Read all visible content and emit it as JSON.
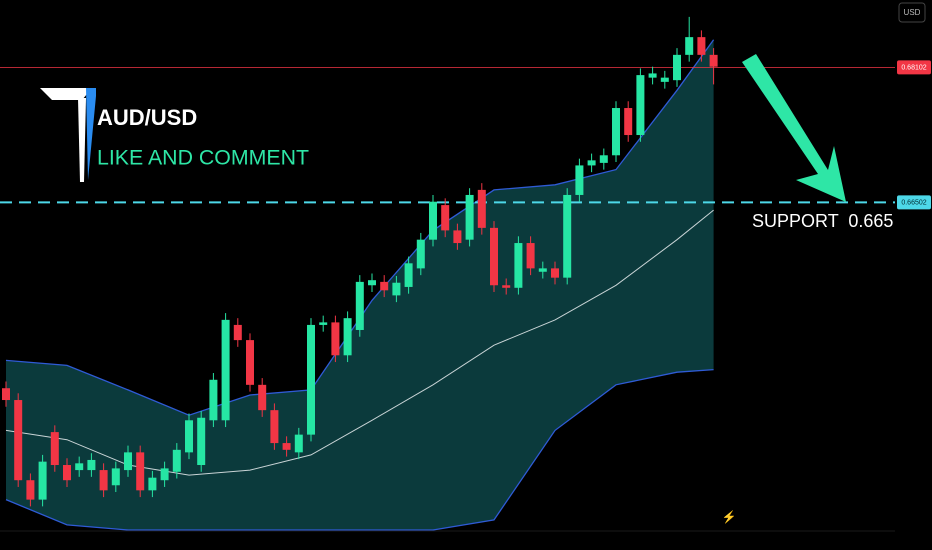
{
  "chart_data": {
    "type": "candlestick",
    "title": "AUD/USD",
    "subtitle": "LIKE AND COMMENT",
    "annotation": "SUPPORT  0.665",
    "currency": "USD",
    "ylim": [
      0.6262,
      0.689
    ],
    "up_color": "#26e6a4",
    "down_color": "#f23645",
    "open": [
      0.643,
      0.6416,
      0.6321,
      0.6298,
      0.6378,
      0.6339,
      0.6333,
      0.6333,
      0.6333,
      0.6315,
      0.6333,
      0.6354,
      0.6309,
      0.6321,
      0.6331,
      0.6354,
      0.6339,
      0.6392,
      0.6392,
      0.6505,
      0.6487,
      0.6434,
      0.6404,
      0.6365,
      0.6354,
      0.6375,
      0.6505,
      0.6508,
      0.6469,
      0.6499,
      0.6552,
      0.6556,
      0.654,
      0.655,
      0.6572,
      0.6606,
      0.6647,
      0.6617,
      0.6606,
      0.6665,
      0.662,
      0.6552,
      0.6549,
      0.6602,
      0.6568,
      0.6572,
      0.6561,
      0.6659,
      0.6694,
      0.6697,
      0.6706,
      0.6762,
      0.673,
      0.6798,
      0.6793,
      0.6795,
      0.6825,
      0.6846,
      0.6825
    ],
    "high": [
      0.6438,
      0.6424,
      0.6329,
      0.6351,
      0.6386,
      0.6347,
      0.6349,
      0.6353,
      0.6341,
      0.6343,
      0.6362,
      0.6362,
      0.6332,
      0.6343,
      0.6365,
      0.64,
      0.6403,
      0.6448,
      0.6519,
      0.6513,
      0.6495,
      0.6442,
      0.6412,
      0.6373,
      0.6383,
      0.6513,
      0.6516,
      0.6516,
      0.6521,
      0.6564,
      0.6566,
      0.6564,
      0.6563,
      0.6586,
      0.6614,
      0.6659,
      0.6655,
      0.6625,
      0.6667,
      0.6673,
      0.6628,
      0.656,
      0.661,
      0.661,
      0.658,
      0.658,
      0.6667,
      0.6702,
      0.6708,
      0.6714,
      0.677,
      0.677,
      0.6809,
      0.6811,
      0.6806,
      0.6833,
      0.687,
      0.6854,
      0.6833
    ],
    "low": [
      0.6408,
      0.6313,
      0.629,
      0.629,
      0.6331,
      0.6313,
      0.6325,
      0.6325,
      0.6301,
      0.6307,
      0.6325,
      0.6301,
      0.6301,
      0.6313,
      0.6323,
      0.6346,
      0.6331,
      0.6384,
      0.6384,
      0.6479,
      0.6426,
      0.6396,
      0.6357,
      0.6349,
      0.6346,
      0.6367,
      0.6497,
      0.6461,
      0.6461,
      0.6491,
      0.6544,
      0.6538,
      0.6532,
      0.6542,
      0.6564,
      0.6598,
      0.6609,
      0.6594,
      0.6598,
      0.6612,
      0.6544,
      0.6541,
      0.6541,
      0.6564,
      0.656,
      0.6553,
      0.6553,
      0.6651,
      0.6686,
      0.6689,
      0.6698,
      0.6722,
      0.6722,
      0.679,
      0.6785,
      0.6787,
      0.6817,
      0.6817,
      0.679
    ],
    "close": [
      0.6416,
      0.6321,
      0.6298,
      0.6343,
      0.6339,
      0.6321,
      0.6341,
      0.6345,
      0.6309,
      0.6335,
      0.6354,
      0.6309,
      0.6324,
      0.6335,
      0.6357,
      0.6392,
      0.6395,
      0.644,
      0.6511,
      0.6487,
      0.6434,
      0.6404,
      0.6365,
      0.6357,
      0.6375,
      0.6505,
      0.6508,
      0.6469,
      0.6513,
      0.6556,
      0.6558,
      0.6546,
      0.6555,
      0.6578,
      0.6606,
      0.6651,
      0.6617,
      0.6602,
      0.6659,
      0.662,
      0.6552,
      0.6549,
      0.6602,
      0.6572,
      0.6572,
      0.6561,
      0.6659,
      0.6694,
      0.67,
      0.6706,
      0.6762,
      0.673,
      0.6801,
      0.6803,
      0.6798,
      0.6825,
      0.6846,
      0.6825,
      0.6811
    ],
    "bands": {
      "x": [
        0,
        5,
        10,
        15,
        20,
        25,
        30,
        35,
        40,
        45,
        50,
        55,
        58
      ],
      "upper": [
        0.6463,
        0.6457,
        0.6428,
        0.6398,
        0.6422,
        0.6428,
        0.6534,
        0.6617,
        0.6665,
        0.6671,
        0.6689,
        0.6783,
        0.6843
      ],
      "middle": [
        0.638,
        0.6369,
        0.6339,
        0.6327,
        0.6333,
        0.6351,
        0.6392,
        0.6434,
        0.6481,
        0.6511,
        0.6552,
        0.6606,
        0.6641
      ],
      "lower": [
        0.6298,
        0.6268,
        0.6262,
        0.6262,
        0.6262,
        0.6262,
        0.6262,
        0.6262,
        0.6274,
        0.638,
        0.6434,
        0.6449,
        0.6452
      ],
      "band_color": "#2f5bd6",
      "middle_color": "#c9d4d6",
      "fill": "#0b3a3c"
    },
    "price_lines": [
      {
        "value": 0.68102,
        "color": "#f23645",
        "style": "solid"
      },
      {
        "value": 0.66502,
        "color": "#4dd8e8",
        "style": "dashed"
      }
    ]
  }
}
